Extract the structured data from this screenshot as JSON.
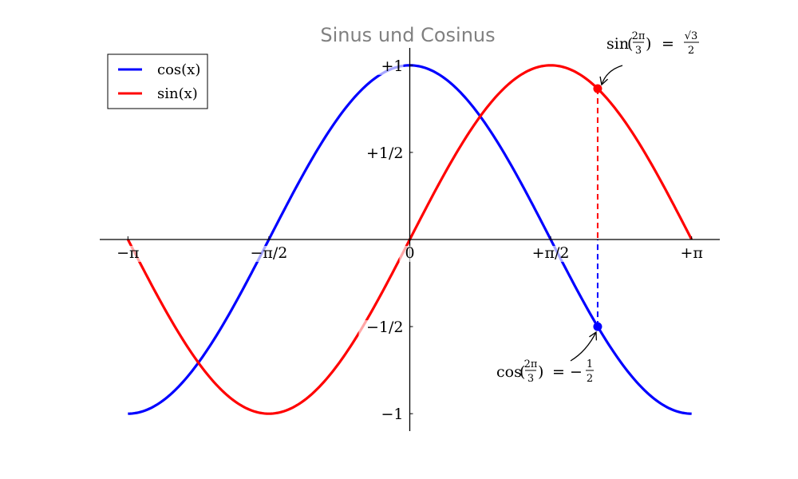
{
  "chart_data": {
    "type": "line",
    "title": "Sinus und Cosinus",
    "xlabel": "",
    "ylabel": "",
    "xlim": [
      -3.4558,
      3.4558
    ],
    "ylim": [
      -1.1,
      1.1
    ],
    "x_ticks": [
      {
        "value": -3.14159265,
        "label": "−π"
      },
      {
        "value": -1.57079633,
        "label": "−π/2"
      },
      {
        "value": 0,
        "label": "0"
      },
      {
        "value": 1.57079633,
        "label": "+π/2"
      },
      {
        "value": 3.14159265,
        "label": "+π"
      }
    ],
    "y_ticks": [
      {
        "value": -1,
        "label": "−1"
      },
      {
        "value": -0.5,
        "label": "−1/2"
      },
      {
        "value": 0.5,
        "label": "+1/2"
      },
      {
        "value": 1,
        "label": "+1"
      }
    ],
    "grid": false,
    "legend_position": "top-left",
    "series": [
      {
        "name": "cos(x)",
        "function": "cos",
        "domain": [
          -3.14159265,
          3.14159265
        ],
        "color": "#0000ff"
      },
      {
        "name": "sin(x)",
        "function": "sin",
        "domain": [
          -3.14159265,
          3.14159265
        ],
        "color": "#ff0000"
      }
    ],
    "highlights": [
      {
        "series": "sin(x)",
        "x": 2.0943951,
        "y": 0.8660254,
        "color": "#ff0000"
      },
      {
        "series": "cos(x)",
        "x": 2.0943951,
        "y": -0.5,
        "color": "#0000ff"
      }
    ],
    "annotations": {
      "sin": {
        "func": "sin",
        "arg_num": "2π",
        "arg_den": "3",
        "eq": "=",
        "val_num": "√3",
        "val_den": "2",
        "sign": ""
      },
      "cos": {
        "func": "cos",
        "arg_num": "2π",
        "arg_den": "3",
        "eq": "= −",
        "val_num": "1",
        "val_den": "2",
        "sign": "−"
      }
    }
  }
}
